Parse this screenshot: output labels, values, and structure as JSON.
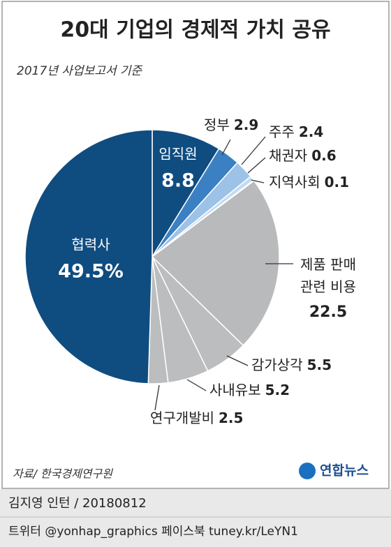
{
  "chart_data": {
    "type": "pie",
    "title": "20대 기업의 경제적 가치 공유",
    "subtitle": "2017년 사업보고서 기준",
    "categories": [
      "임직원",
      "정부",
      "주주",
      "채권자",
      "지역사회",
      "제품 판매 관련 비용",
      "감가상각",
      "사내유보",
      "연구개발비",
      "협력사"
    ],
    "values": [
      8.8,
      2.9,
      2.4,
      0.6,
      0.1,
      22.5,
      5.5,
      5.2,
      2.5,
      49.5
    ],
    "value_labels": [
      "8.8",
      "2.9",
      "2.4",
      "0.6",
      "0.1",
      "22.5",
      "5.5",
      "5.2",
      "2.5",
      "49.5%"
    ],
    "colors": [
      "#0f4c80",
      "#3a80c3",
      "#9dc2e8",
      "#c3dbf1",
      "#dfeaf6",
      "#b9babc",
      "#bcbdbf",
      "#bcbdbf",
      "#bcbdbf",
      "#0f4c80"
    ],
    "source": "자료/ 한국경제연구원",
    "logo": "연합뉴스",
    "byline": "김지영 인턴 / 20180812",
    "social": "트위터 @yonhap_graphics  페이스북 tuney.kr/LeYN1"
  }
}
